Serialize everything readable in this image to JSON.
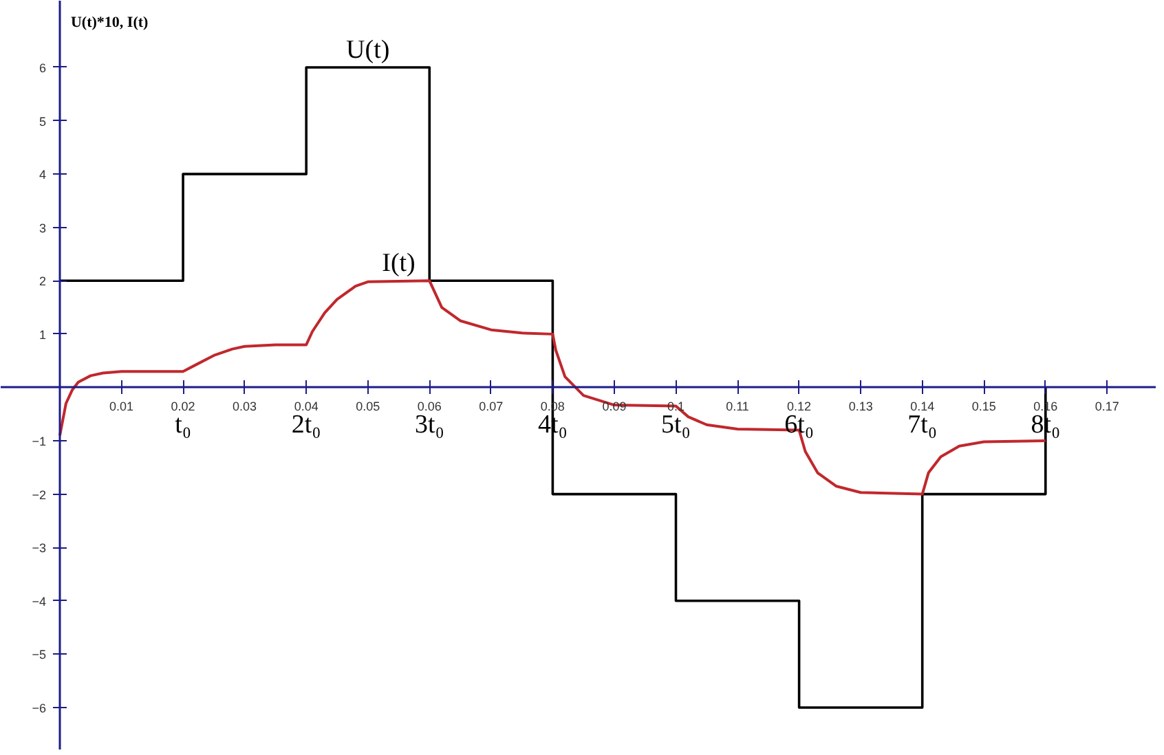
{
  "chart_data": {
    "type": "line",
    "ylabel": "U(t)*10, I(t)",
    "xlim": [
      -0.0096,
      0.178
    ],
    "ylim": [
      -6.8,
      7.25
    ],
    "xticks": [
      0.01,
      0.02,
      0.03,
      0.04,
      0.05,
      0.06,
      0.07,
      0.08,
      0.09,
      0.1,
      0.11,
      0.12,
      0.13,
      0.14,
      0.15,
      0.16,
      0.17
    ],
    "yticks": [
      -6,
      -5,
      -4,
      -3,
      -2,
      -1,
      1,
      2,
      3,
      4,
      5,
      6
    ],
    "grid": false,
    "marker": "none",
    "line_style": "solid",
    "series": [
      {
        "name": "U(t)",
        "type": "step",
        "color": "#000000",
        "x": [
          0,
          0.02,
          0.04,
          0.06,
          0.08,
          0.1,
          0.12,
          0.14,
          0.16
        ],
        "values": [
          2,
          4,
          6,
          2,
          -2,
          -4,
          -6,
          -2,
          0
        ]
      },
      {
        "name": "I(t)",
        "color": "#c0282d",
        "x": [
          0,
          0.001,
          0.002,
          0.003,
          0.005,
          0.007,
          0.01,
          0.02,
          0.022,
          0.025,
          0.028,
          0.03,
          0.035,
          0.04,
          0.041,
          0.043,
          0.045,
          0.048,
          0.05,
          0.06,
          0.062,
          0.065,
          0.07,
          0.075,
          0.08,
          0.0805,
          0.082,
          0.085,
          0.09,
          0.1,
          0.102,
          0.105,
          0.11,
          0.12,
          0.121,
          0.123,
          0.126,
          0.13,
          0.14,
          0.141,
          0.143,
          0.146,
          0.15,
          0.16
        ],
        "values": [
          -0.9,
          -0.3,
          -0.05,
          0.1,
          0.22,
          0.27,
          0.3,
          0.3,
          0.42,
          0.6,
          0.72,
          0.77,
          0.8,
          0.8,
          1.05,
          1.4,
          1.65,
          1.9,
          1.98,
          2.0,
          1.5,
          1.25,
          1.08,
          1.02,
          1.0,
          0.7,
          0.2,
          -0.15,
          -0.33,
          -0.35,
          -0.55,
          -0.7,
          -0.78,
          -0.8,
          -1.2,
          -1.6,
          -1.85,
          -1.97,
          -2.0,
          -1.6,
          -1.3,
          -1.1,
          -1.02,
          -1.0
        ]
      }
    ],
    "x2lim": [
      -0.48,
      8.9
    ],
    "x2ticks": [
      {
        "value": 1,
        "label": "t₀"
      },
      {
        "value": 2,
        "label": "2t₀"
      },
      {
        "value": 3,
        "label": "3t₀"
      },
      {
        "value": 4,
        "label": "4t₀"
      },
      {
        "value": 5,
        "label": "5t₀"
      },
      {
        "value": 6,
        "label": "6t₀"
      },
      {
        "value": 7,
        "label": "7t₀"
      },
      {
        "value": 8,
        "label": "8t₀"
      }
    ]
  }
}
